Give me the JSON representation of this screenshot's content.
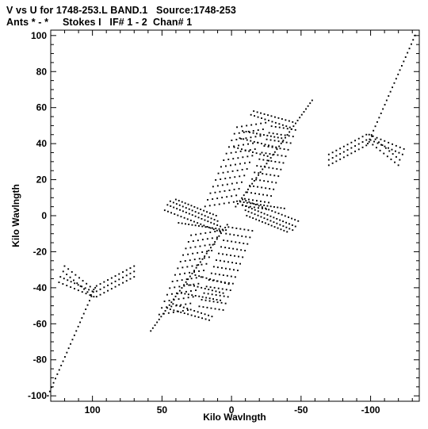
{
  "title_line1": "V vs U for 1748-253.L BAND.1   Source:1748-253",
  "title_line2": "Ants * - *     Stokes I   IF# 1 - 2  Chan# 1",
  "chart_data": {
    "type": "scatter",
    "title": "V vs U for 1748-253.L BAND.1   Source:1748-253",
    "subtitle": "Ants * - *     Stokes I   IF# 1 - 2  Chan# 1",
    "xlabel": "Kilo Wavlngth",
    "ylabel": "Kilo Wavlngth",
    "xlim": [
      130,
      -135
    ],
    "ylim": [
      -103,
      103
    ],
    "x_ticks": [
      {
        "value": 100,
        "label": "100"
      },
      {
        "value": 50,
        "label": "50"
      },
      {
        "value": 0,
        "label": "0"
      },
      {
        "value": -50,
        "label": "-50"
      },
      {
        "value": -100,
        "label": "-100"
      }
    ],
    "y_ticks": [
      {
        "value": 100,
        "label": "100"
      },
      {
        "value": 80,
        "label": "80"
      },
      {
        "value": 60,
        "label": "60"
      },
      {
        "value": 40,
        "label": "40"
      },
      {
        "value": 20,
        "label": "20"
      },
      {
        "value": 0,
        "label": "0"
      },
      {
        "value": -20,
        "label": "-20"
      },
      {
        "value": -40,
        "label": "-40"
      },
      {
        "value": -60,
        "label": "-60"
      },
      {
        "value": -80,
        "label": "-80"
      },
      {
        "value": -100,
        "label": "-100"
      }
    ],
    "grid": false,
    "marker_color": "#000000",
    "tracks": [
      {
        "from": [
          -3,
          5
        ],
        "to": [
          -58,
          64
        ],
        "n": 38
      },
      {
        "from": [
          3,
          -5
        ],
        "to": [
          58,
          -64
        ],
        "n": 38
      },
      {
        "from": [
          -98,
          40
        ],
        "to": [
          -132,
          100
        ],
        "n": 26
      },
      {
        "from": [
          98,
          -40
        ],
        "to": [
          132,
          -100
        ],
        "n": 26
      },
      {
        "from": [
          -97,
          45
        ],
        "to": [
          -70,
          34
        ],
        "n": 11
      },
      {
        "from": [
          -97,
          42
        ],
        "to": [
          -70,
          31
        ],
        "n": 11
      },
      {
        "from": [
          -97,
          39
        ],
        "to": [
          -70,
          28
        ],
        "n": 11
      },
      {
        "from": [
          -99,
          41
        ],
        "to": [
          -120,
          28
        ],
        "n": 9
      },
      {
        "from": [
          -101,
          44
        ],
        "to": [
          -121,
          31
        ],
        "n": 9
      },
      {
        "from": [
          -99,
          45
        ],
        "to": [
          -124,
          37
        ],
        "n": 10
      },
      {
        "from": [
          -100,
          42
        ],
        "to": [
          -123,
          34
        ],
        "n": 10
      },
      {
        "from": [
          97,
          -45
        ],
        "to": [
          70,
          -34
        ],
        "n": 11
      },
      {
        "from": [
          97,
          -42
        ],
        "to": [
          70,
          -31
        ],
        "n": 11
      },
      {
        "from": [
          97,
          -39
        ],
        "to": [
          70,
          -28
        ],
        "n": 11
      },
      {
        "from": [
          99,
          -41
        ],
        "to": [
          120,
          -28
        ],
        "n": 9
      },
      {
        "from": [
          101,
          -44
        ],
        "to": [
          121,
          -31
        ],
        "n": 9
      },
      {
        "from": [
          99,
          -45
        ],
        "to": [
          124,
          -37
        ],
        "n": 10
      },
      {
        "from": [
          100,
          -42
        ],
        "to": [
          123,
          -34
        ],
        "n": 10
      },
      {
        "from": [
          -8,
          9
        ],
        "to": [
          -48,
          -3
        ],
        "n": 18
      },
      {
        "from": [
          -8,
          6
        ],
        "to": [
          -46,
          -6
        ],
        "n": 18
      },
      {
        "from": [
          -10,
          3
        ],
        "to": [
          -44,
          -8
        ],
        "n": 16
      },
      {
        "from": [
          -11,
          0
        ],
        "to": [
          -40,
          -9
        ],
        "n": 14
      },
      {
        "from": [
          -4,
          8
        ],
        "to": [
          -38,
          4
        ],
        "n": 15
      },
      {
        "from": [
          8,
          -9
        ],
        "to": [
          48,
          3
        ],
        "n": 18
      },
      {
        "from": [
          8,
          -6
        ],
        "to": [
          46,
          6
        ],
        "n": 18
      },
      {
        "from": [
          10,
          -3
        ],
        "to": [
          44,
          8
        ],
        "n": 16
      },
      {
        "from": [
          11,
          0
        ],
        "to": [
          40,
          9
        ],
        "n": 14
      },
      {
        "from": [
          4,
          -8
        ],
        "to": [
          38,
          -4
        ],
        "n": 15
      },
      {
        "from": [
          -16,
          58
        ],
        "to": [
          -44,
          52
        ],
        "n": 12
      },
      {
        "from": [
          -14,
          56
        ],
        "to": [
          -42,
          49
        ],
        "n": 12
      },
      {
        "from": [
          -8,
          47
        ],
        "to": [
          -36,
          43
        ],
        "n": 12
      },
      {
        "from": [
          -6,
          43
        ],
        "to": [
          -32,
          38
        ],
        "n": 11
      },
      {
        "from": [
          -2,
          38
        ],
        "to": [
          -26,
          33
        ],
        "n": 10
      },
      {
        "from": [
          16,
          -58
        ],
        "to": [
          44,
          -52
        ],
        "n": 12
      },
      {
        "from": [
          14,
          -56
        ],
        "to": [
          42,
          -49
        ],
        "n": 12
      },
      {
        "from": [
          8,
          -47
        ],
        "to": [
          36,
          -43
        ],
        "n": 12
      },
      {
        "from": [
          6,
          -43
        ],
        "to": [
          32,
          -38
        ],
        "n": 11
      },
      {
        "from": [
          2,
          -38
        ],
        "to": [
          26,
          -33
        ],
        "n": 10
      }
    ],
    "fans": [
      {
        "from": [
          -5,
          8
        ],
        "to": [
          -28,
          52
        ],
        "n": 13,
        "len": 24
      },
      {
        "from": [
          5,
          -8
        ],
        "to": [
          28,
          -52
        ],
        "n": 13,
        "len": 24
      },
      {
        "from": [
          -5,
          6
        ],
        "to": [
          -26,
          50
        ],
        "n": 13,
        "len": -20
      },
      {
        "from": [
          5,
          -6
        ],
        "to": [
          26,
          -50
        ],
        "n": 13,
        "len": -20
      }
    ]
  }
}
